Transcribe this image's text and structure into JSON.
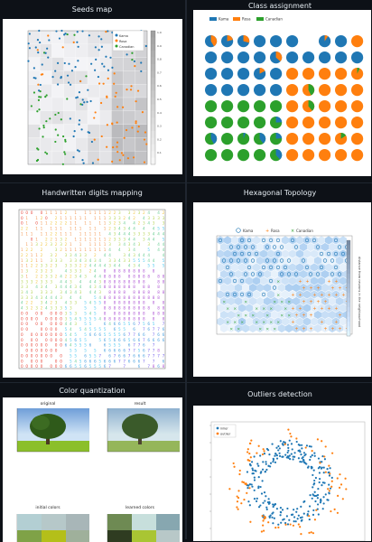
{
  "cards": [
    {
      "title": "Seeds map"
    },
    {
      "title": "Class assignment"
    },
    {
      "title": "Handwritten digits mapping"
    },
    {
      "title": "Hexagonal Topology"
    },
    {
      "title": "Color quantization"
    },
    {
      "title": "Outliers detection"
    }
  ],
  "seeds_map": {
    "legend": [
      "Kama",
      "Rosa",
      "Canadian"
    ],
    "colorbar_ticks": [
      "1.0",
      "0.9",
      "0.8",
      "0.7",
      "0.6",
      "0.5",
      "0.4",
      "0.3",
      "0.2",
      "0.1"
    ],
    "colors": {
      "kama": "#1f77b4",
      "rosa": "#ff7f0e",
      "canadian": "#2ca02c"
    }
  },
  "class_assignment": {
    "legend": [
      "Kama",
      "Rosa",
      "Canadian"
    ]
  },
  "hex_topology": {
    "legend": [
      "Kama",
      "Rosa",
      "Canadian"
    ],
    "colorbar_label": "distance from neurons in the neighbourhood"
  },
  "color_quantization": {
    "subplots": [
      "original",
      "result",
      "initial colors",
      "learned colors"
    ]
  },
  "outliers": {
    "legend": [
      "inlier",
      "outlier"
    ]
  }
}
